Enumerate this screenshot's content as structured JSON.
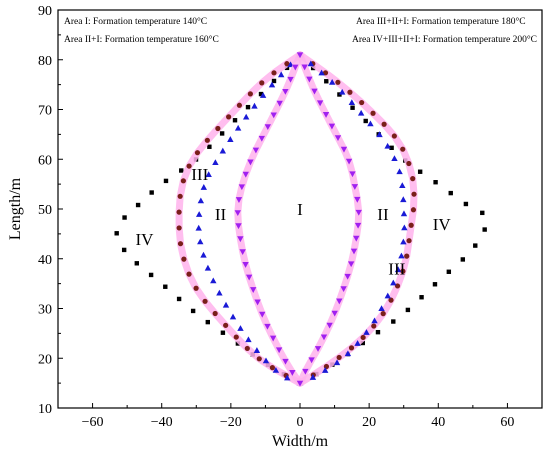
{
  "chart_data": {
    "type": "scatter",
    "title": "",
    "xlabel": "Width/m",
    "ylabel": "Length/m",
    "xlim": [
      -70,
      70
    ],
    "ylim": [
      10,
      90
    ],
    "xticks": [
      -60,
      -40,
      -20,
      0,
      20,
      40,
      60
    ],
    "yticks": [
      10,
      20,
      30,
      40,
      50,
      60,
      70,
      80,
      90
    ],
    "legend_placement": "top",
    "legend": [
      {
        "text": "Area I: Formation temperature 140°C",
        "pos": "top-left"
      },
      {
        "text": "Area II+I: Formation temperature 160°C",
        "pos": "top-left-2"
      },
      {
        "text": "Area III+II+I: Formation temperature 180°C",
        "pos": "top-right"
      },
      {
        "text": "Area IV+III+II+I: Formation temperature 200°C",
        "pos": "top-right-2"
      }
    ],
    "series": [
      {
        "marker": "square",
        "color": "#000000",
        "top": [
          0,
          81
        ],
        "bottom": [
          0,
          15
        ],
        "right": [
          [
            10,
            74
          ],
          [
            20,
            67
          ],
          [
            30,
            60
          ],
          [
            40,
            55
          ],
          [
            48,
            51
          ],
          [
            54,
            48
          ],
          [
            50,
            42
          ],
          [
            40,
            35.5
          ],
          [
            30,
            29
          ],
          [
            20,
            24
          ],
          [
            10,
            19
          ]
        ],
        "left": [
          [
            -10,
            74
          ],
          [
            -20,
            67
          ],
          [
            -30,
            60
          ],
          [
            -40,
            55
          ],
          [
            -48,
            50
          ],
          [
            -53,
            46
          ],
          [
            -50,
            41
          ],
          [
            -40,
            35
          ],
          [
            -30,
            29
          ],
          [
            -20,
            24
          ],
          [
            -10,
            19
          ]
        ],
        "points_per_side": 28
      },
      {
        "marker": "circle",
        "color": "#7a1f1a",
        "halo": "#ffb3ec",
        "top": [
          0,
          81
        ],
        "bottom": [
          0,
          15
        ],
        "right": [
          [
            10,
            76
          ],
          [
            20,
            70
          ],
          [
            28,
            64
          ],
          [
            32,
            58
          ],
          [
            33,
            52
          ],
          [
            32,
            46
          ],
          [
            30,
            38
          ],
          [
            25,
            30
          ],
          [
            18,
            24
          ],
          [
            9,
            19
          ]
        ],
        "left": [
          [
            -10,
            76
          ],
          [
            -20,
            69
          ],
          [
            -30,
            61
          ],
          [
            -34,
            55
          ],
          [
            -35,
            48
          ],
          [
            -34,
            41
          ],
          [
            -30,
            34
          ],
          [
            -22,
            27
          ],
          [
            -12,
            20
          ]
        ],
        "points_per_side": 28
      },
      {
        "marker": "triangle-up",
        "color": "#1a1ad6",
        "top": [
          0,
          81
        ],
        "bottom": [
          0,
          15
        ],
        "right": [
          [
            10,
            75
          ],
          [
            18,
            69
          ],
          [
            25,
            63
          ],
          [
            29,
            57
          ],
          [
            30,
            50
          ],
          [
            30,
            44
          ],
          [
            28,
            37
          ],
          [
            22,
            28
          ],
          [
            14,
            21
          ],
          [
            6,
            17
          ]
        ],
        "left": [
          [
            -8,
            75
          ],
          [
            -15,
            69
          ],
          [
            -22,
            62
          ],
          [
            -27,
            56
          ],
          [
            -29,
            50
          ],
          [
            -29,
            44
          ],
          [
            -26,
            37
          ],
          [
            -20,
            29
          ],
          [
            -13,
            22
          ],
          [
            -6,
            17
          ]
        ],
        "points_per_side": 30
      },
      {
        "marker": "triangle-down",
        "color": "#a020f0",
        "halo": "#ffb3ec",
        "top": [
          0,
          81
        ],
        "bottom": [
          0,
          15
        ],
        "right": [
          [
            4,
            74
          ],
          [
            9,
            67
          ],
          [
            14,
            60
          ],
          [
            16,
            54
          ],
          [
            17,
            49
          ],
          [
            16,
            43
          ],
          [
            14,
            37
          ],
          [
            10,
            29
          ],
          [
            6,
            23
          ],
          [
            2,
            18
          ]
        ],
        "left": [
          [
            -4,
            74
          ],
          [
            -9,
            67
          ],
          [
            -14,
            60
          ],
          [
            -17,
            54
          ],
          [
            -18,
            49
          ],
          [
            -17,
            43
          ],
          [
            -15,
            37
          ],
          [
            -11,
            29
          ],
          [
            -7,
            23
          ],
          [
            -3,
            18
          ]
        ],
        "points_per_side": 28
      }
    ],
    "annotations": [
      {
        "text": "I",
        "x": 0,
        "y": 50
      },
      {
        "text": "II",
        "x": -23,
        "y": 49
      },
      {
        "text": "II",
        "x": 24,
        "y": 49
      },
      {
        "text": "III",
        "x": -29,
        "y": 57
      },
      {
        "text": "III",
        "x": 28,
        "y": 38
      },
      {
        "text": "IV",
        "x": -45,
        "y": 44
      },
      {
        "text": "IV",
        "x": 41,
        "y": 47
      }
    ]
  }
}
